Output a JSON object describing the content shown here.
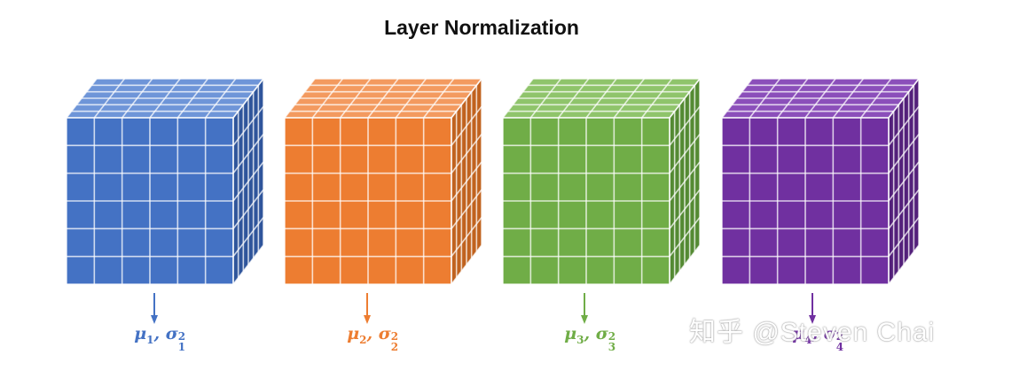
{
  "title": "Layer Normalization",
  "blocks": [
    {
      "name": "block-1",
      "front": "#4472C4",
      "top": "#6E95D8",
      "side": "#2F559B",
      "stat": {
        "mu": "μ",
        "sigma": "σ",
        "index": "1",
        "power": "2"
      }
    },
    {
      "name": "block-2",
      "front": "#ED7D31",
      "top": "#F39A5F",
      "side": "#C0621E",
      "stat": {
        "mu": "μ",
        "sigma": "σ",
        "index": "2",
        "power": "2"
      }
    },
    {
      "name": "block-3",
      "front": "#70AD47",
      "top": "#8FC46B",
      "side": "#548A33",
      "stat": {
        "mu": "μ",
        "sigma": "σ",
        "index": "3",
        "power": "2"
      }
    },
    {
      "name": "block-4",
      "front": "#7030A0",
      "top": "#8B4FBA",
      "side": "#53207A",
      "stat": {
        "mu": "μ",
        "sigma": "σ",
        "index": "4",
        "power": "2"
      }
    }
  ],
  "watermark": "知乎 @Steven Chai"
}
